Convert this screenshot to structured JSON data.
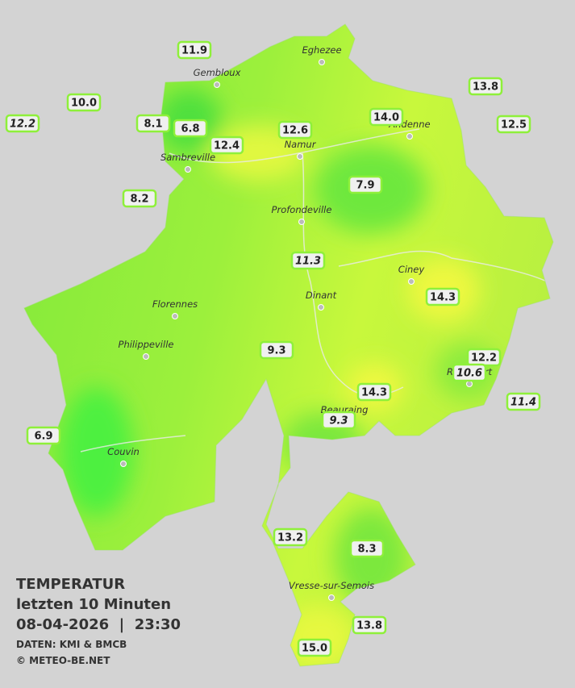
{
  "map": {
    "towns": [
      "Eghezee",
      "Gembloux",
      "Andenne",
      "Namur",
      "Sambreville",
      "Profondeville",
      "Ciney",
      "Dinant",
      "Florennes",
      "Philippeville",
      "Rochefort",
      "Beauraing",
      "Couvin",
      "Vresse-sur-Semois"
    ],
    "stations": [
      {
        "value": "11.9"
      },
      {
        "value": "10.0"
      },
      {
        "value": "12.2",
        "italic": true
      },
      {
        "value": "8.1"
      },
      {
        "value": "6.8"
      },
      {
        "value": "12.4"
      },
      {
        "value": "12.6"
      },
      {
        "value": "14.0"
      },
      {
        "value": "13.8"
      },
      {
        "value": "12.5"
      },
      {
        "value": "8.2"
      },
      {
        "value": "7.9"
      },
      {
        "value": "11.3",
        "italic": true
      },
      {
        "value": "14.3"
      },
      {
        "value": "9.3"
      },
      {
        "value": "12.2"
      },
      {
        "value": "10.6",
        "italic": true
      },
      {
        "value": "14.3"
      },
      {
        "value": "11.4",
        "italic": true
      },
      {
        "value": "9.3",
        "italic": true
      },
      {
        "value": "6.9"
      },
      {
        "value": "13.2"
      },
      {
        "value": "8.3"
      },
      {
        "value": "13.8"
      },
      {
        "value": "15.0"
      }
    ],
    "legend": {
      "title": "TEMPERATUR",
      "subtitle": "letzten 10 Minuten",
      "datetime": "08-04-2026  |  23:30",
      "source": "DATEN: KMI & BMCB",
      "copyright": "© METEO-BE.NET"
    }
  }
}
